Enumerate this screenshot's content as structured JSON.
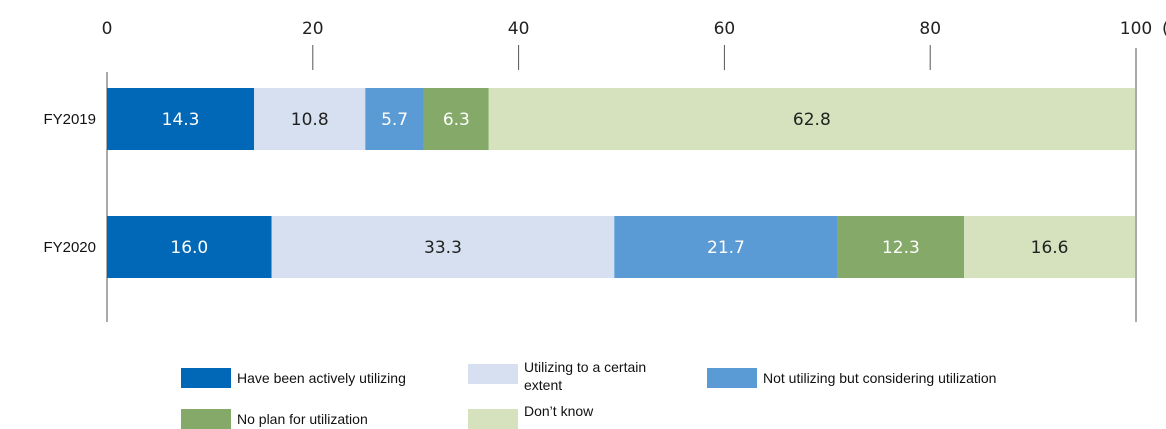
{
  "chart_data": {
    "type": "bar",
    "orientation": "horizontal",
    "stacked": true,
    "categories": [
      "FY2019",
      "FY2020"
    ],
    "unit_label": "(%)",
    "xlim": [
      0,
      100
    ],
    "ticks": [
      0,
      20,
      40,
      60,
      80,
      100
    ],
    "series": [
      {
        "name": "Have been actively utilizing",
        "color": "#0068b7",
        "label_color": "#ffffff",
        "values": [
          14.3,
          16.0
        ]
      },
      {
        "name": "Utilizing to a certain extent",
        "color": "#d6e0f0",
        "label_color": "#222222",
        "values": [
          10.8,
          33.3
        ]
      },
      {
        "name": "Not utilizing but considering utilization",
        "color": "#5b9bd5",
        "label_color": "#ffffff",
        "values": [
          5.7,
          21.7
        ]
      },
      {
        "name": "No plan for utilization",
        "color": "#84a968",
        "label_color": "#ffffff",
        "values": [
          6.3,
          12.3
        ]
      },
      {
        "name": "Don’t know",
        "color": "#d5e2bd",
        "label_color": "#222222",
        "values": [
          62.8,
          16.6
        ]
      }
    ],
    "legend_position": "bottom"
  }
}
